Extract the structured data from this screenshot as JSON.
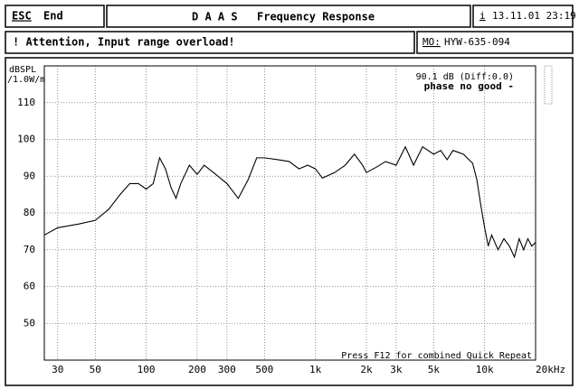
{
  "header": {
    "esc": "ESC",
    "esc_action": "End",
    "app": "D A A S",
    "title": "Frequency Response",
    "info_key": "i",
    "datetime": "13.11.01 23:19",
    "warning": "! Attention, Input range overload!",
    "model_key": "MO:",
    "model": "HYW-635-094"
  },
  "chart_data": {
    "type": "line",
    "y_unit": "dBSPL",
    "y_reference": "/1.0W/m",
    "readout": "90.1 dB (Diff:0.0)",
    "phase_note": "phase no good -",
    "footer_note": "Press F12 for combined Quick Repeat",
    "color": "#000000",
    "log_x": true,
    "grid": true,
    "xlim": [
      25,
      20000
    ],
    "ylim": [
      40,
      120
    ],
    "yticks": [
      50,
      60,
      70,
      80,
      90,
      100,
      110
    ],
    "xticks": [
      30,
      50,
      100,
      200,
      300,
      500,
      {
        "value": 1000,
        "label": "1k"
      },
      {
        "value": 2000,
        "label": "2k"
      },
      {
        "value": 3000,
        "label": "3k"
      },
      {
        "value": 5000,
        "label": "5k"
      },
      {
        "value": 10000,
        "label": "10k"
      },
      {
        "value": 20000,
        "label": "20kHz"
      }
    ],
    "x": [
      25,
      30,
      40,
      50,
      60,
      70,
      80,
      90,
      100,
      110,
      120,
      130,
      140,
      150,
      160,
      180,
      200,
      220,
      250,
      300,
      350,
      400,
      450,
      500,
      600,
      700,
      800,
      900,
      1000,
      1100,
      1300,
      1500,
      1700,
      1900,
      2000,
      2300,
      2600,
      3000,
      3400,
      3800,
      4300,
      5000,
      5500,
      6000,
      6500,
      7500,
      8500,
      9000,
      9500,
      10000,
      10500,
      11000,
      12000,
      13000,
      14000,
      15000,
      16000,
      17000,
      18000,
      19000,
      20000
    ],
    "values": [
      74,
      76,
      77,
      78,
      81,
      85,
      88,
      88,
      86.5,
      88,
      95,
      92,
      87,
      84,
      88,
      93,
      90.5,
      93,
      91,
      88,
      84,
      89,
      95,
      95,
      94.5,
      94,
      92,
      93,
      92,
      89.5,
      91,
      93,
      96,
      93,
      91,
      92.5,
      94,
      93,
      98,
      93,
      98,
      96,
      97,
      94.5,
      97,
      96,
      93.5,
      89,
      82,
      76,
      71,
      74,
      70,
      73,
      71,
      68,
      73,
      70,
      73,
      71,
      72
    ]
  }
}
